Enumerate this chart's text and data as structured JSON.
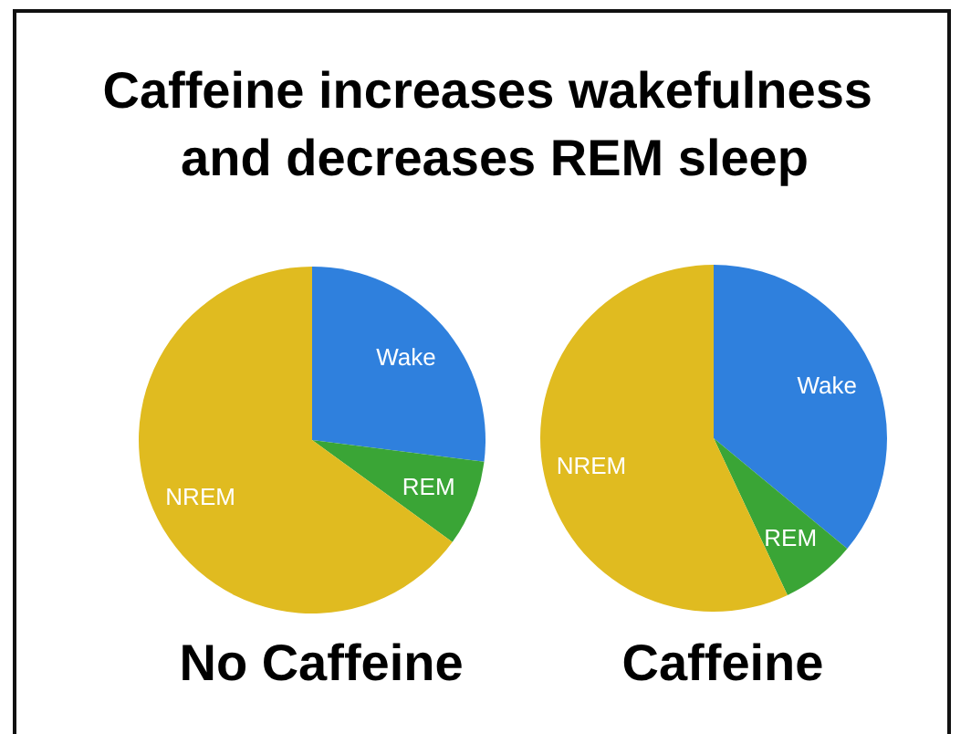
{
  "chart_data": {
    "type": "pie",
    "title": "Caffeine increases wakefulness and decreases REM sleep",
    "categories": [
      "Wake",
      "REM",
      "NREM"
    ],
    "colors": [
      "#2f80dd",
      "#3aa536",
      "#e0bb20"
    ],
    "series": [
      {
        "name": "No Caffeine",
        "values": [
          27,
          8,
          65
        ]
      },
      {
        "name": "Caffeine",
        "values": [
          36,
          7,
          57
        ]
      }
    ]
  }
}
